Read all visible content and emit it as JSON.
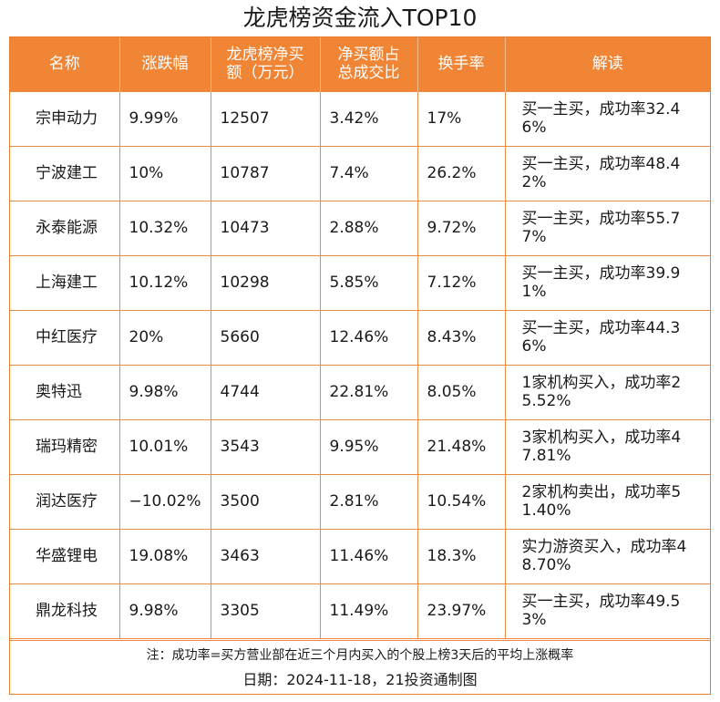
{
  "title": "龙虎榜资金流入TOP10",
  "colors": {
    "header_bg": "#ef8535",
    "border": "#ea8a45",
    "header_text": "#ffffff"
  },
  "table": {
    "headers": [
      "名称",
      "涨跌幅",
      "龙虎榜净买额（万元）",
      "净买额占总成交比",
      "换手率",
      "解读"
    ],
    "rows": [
      [
        "宗申动力",
        "9.99%",
        "12507",
        "3.42%",
        "17%",
        "买一主买，成功率32.46%"
      ],
      [
        "宁波建工",
        "10%",
        "10787",
        "7.4%",
        "26.2%",
        "买一主买，成功率48.42%"
      ],
      [
        "永泰能源",
        "10.32%",
        "10473",
        "2.88%",
        "9.72%",
        "买一主买，成功率55.77%"
      ],
      [
        "上海建工",
        "10.12%",
        "10298",
        "5.85%",
        "7.12%",
        "买一主买，成功率39.91%"
      ],
      [
        "中红医疗",
        "20%",
        "5660",
        "12.46%",
        "8.43%",
        "买一主买，成功率44.36%"
      ],
      [
        "奥特迅",
        "9.98%",
        "4744",
        "22.81%",
        "8.05%",
        "1家机构买入，成功率25.52%"
      ],
      [
        "瑞玛精密",
        "10.01%",
        "3543",
        "9.95%",
        "21.48%",
        "3家机构买入，成功率47.81%"
      ],
      [
        "润达医疗",
        "−10.02%",
        "3500",
        "2.81%",
        "10.54%",
        "2家机构卖出，成功率51.40%"
      ],
      [
        "华盛锂电",
        "19.08%",
        "3463",
        "11.46%",
        "18.3%",
        "实力游资买入，成功率48.70%"
      ],
      [
        "鼎龙科技",
        "9.98%",
        "3305",
        "11.49%",
        "23.97%",
        "买一主买，成功率49.53%"
      ]
    ]
  },
  "footer": {
    "note": "注：成功率=买方营业部在近三个月内买入的个股上榜3天后的平均上涨概率",
    "date": "日期：2024-11-18，21投资通制图"
  }
}
